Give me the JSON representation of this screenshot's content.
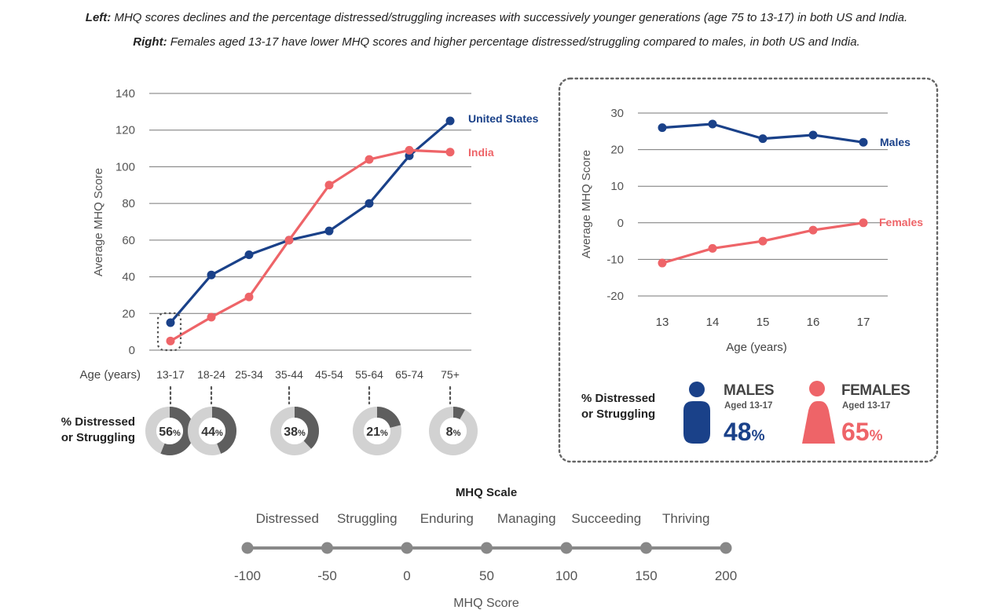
{
  "captions": {
    "left_label": "Left:",
    "left_text": " MHQ scores declines and the percentage distressed/struggling increases with successively younger generations (age 75 to 13-17) in both US and India.",
    "right_label": "Right:",
    "right_text": " Females aged 13-17 have lower MHQ scores and higher percentage distressed/struggling compared to males, in both US and India."
  },
  "colors": {
    "us": "#1a4189",
    "india": "#ee6468",
    "grid": "#6b6b6b",
    "donut_bg": "#d2d2d2",
    "donut_fg": "#5e5e5e"
  },
  "chart_data": [
    {
      "type": "line",
      "title": "",
      "xlabel": "Age (years)",
      "ylabel": "Average MHQ Score",
      "ylim": [
        0,
        140
      ],
      "yticks": [
        0,
        20,
        40,
        60,
        80,
        100,
        120,
        140
      ],
      "categories": [
        "13-17",
        "18-24",
        "25-34",
        "35-44",
        "45-54",
        "55-64",
        "65-74",
        "75+"
      ],
      "series": [
        {
          "name": "United States",
          "values": [
            15,
            41,
            52,
            60,
            65,
            80,
            106,
            125
          ]
        },
        {
          "name": "India",
          "values": [
            5,
            18,
            29,
            60,
            90,
            104,
            109,
            108
          ]
        }
      ],
      "distress_label": "% Distressed\nor Struggling",
      "distress": [
        {
          "age": "13-17",
          "value": 56,
          "num": "56",
          "unit": "%"
        },
        {
          "age": "18-24",
          "value": 44,
          "num": "44",
          "unit": "%"
        },
        {
          "age": "35-44",
          "value": 38,
          "num": "38",
          "unit": "%"
        },
        {
          "age": "55-64",
          "value": 21,
          "num": "21",
          "unit": "%"
        },
        {
          "age": "75+",
          "value": 8,
          "num": "8",
          "unit": "%"
        }
      ]
    },
    {
      "type": "line",
      "title": "",
      "xlabel": "Age (years)",
      "ylabel": "Average MHQ Score",
      "ylim": [
        -20,
        30
      ],
      "yticks": [
        -20,
        -10,
        0,
        10,
        20,
        30
      ],
      "categories": [
        "13",
        "14",
        "15",
        "16",
        "17"
      ],
      "series": [
        {
          "name": "Males",
          "values": [
            26,
            27,
            23,
            24,
            22
          ]
        },
        {
          "name": "Females",
          "values": [
            -11,
            -7,
            -5,
            -2,
            0
          ]
        }
      ]
    },
    {
      "type": "scale",
      "title": "MHQ Scale",
      "xlabel": "MHQ Score",
      "ticks": [
        -100,
        -50,
        0,
        50,
        100,
        150,
        200
      ],
      "categories": [
        "Distressed",
        "Struggling",
        "Enduring",
        "Managing",
        "Succeeding",
        "Thriving"
      ]
    }
  ],
  "gender_panel": {
    "label": "% Distressed\nor Struggling",
    "males": {
      "title": "MALES",
      "sub": "Aged 13-17",
      "num": "48",
      "unit": "%",
      "value": 48
    },
    "females": {
      "title": "FEMALES",
      "sub": "Aged 13-17",
      "num": "65",
      "unit": "%",
      "value": 65
    }
  }
}
